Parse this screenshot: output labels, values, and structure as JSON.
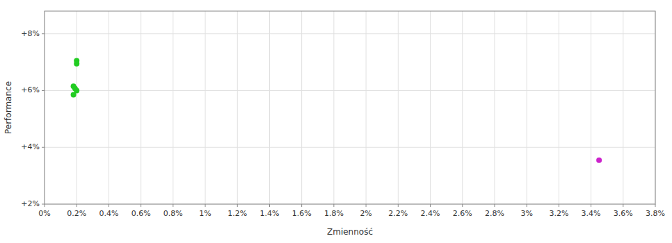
{
  "chart_data": {
    "type": "scatter",
    "x_label": "Zmienność",
    "y_label": "Performance",
    "xlim": [
      0.0,
      0.038
    ],
    "ylim": [
      0.02,
      0.088
    ],
    "xticks": [
      {
        "value": 0.0,
        "label": "0%"
      },
      {
        "value": 0.002,
        "label": "0.2%"
      },
      {
        "value": 0.004,
        "label": "0.4%"
      },
      {
        "value": 0.006,
        "label": "0.6%"
      },
      {
        "value": 0.008,
        "label": "0.8%"
      },
      {
        "value": 0.01,
        "label": "1%"
      },
      {
        "value": 0.012,
        "label": "1.2%"
      },
      {
        "value": 0.014,
        "label": "1.4%"
      },
      {
        "value": 0.016,
        "label": "1.6%"
      },
      {
        "value": 0.018,
        "label": "1.8%"
      },
      {
        "value": 0.02,
        "label": "2%"
      },
      {
        "value": 0.022,
        "label": "2.2%"
      },
      {
        "value": 0.024,
        "label": "2.4%"
      },
      {
        "value": 0.026,
        "label": "2.6%"
      },
      {
        "value": 0.028,
        "label": "2.8%"
      },
      {
        "value": 0.03,
        "label": "3%"
      },
      {
        "value": 0.032,
        "label": "3.2%"
      },
      {
        "value": 0.034,
        "label": "3.4%"
      },
      {
        "value": 0.036,
        "label": "3.6%"
      },
      {
        "value": 0.038,
        "label": "3.8%"
      }
    ],
    "yticks": [
      {
        "value": 0.02,
        "label": "+2%"
      },
      {
        "value": 0.04,
        "label": "+4%"
      },
      {
        "value": 0.06,
        "label": "+6%"
      },
      {
        "value": 0.08,
        "label": "+8%"
      }
    ],
    "grid": true,
    "series": [
      {
        "color": "#22cc22",
        "x": [
          0.002,
          0.002,
          0.0018,
          0.0019,
          0.002,
          0.0018
        ],
        "values": [
          0.0705,
          0.0695,
          0.0615,
          0.0607,
          0.06,
          0.0585
        ]
      },
      {
        "color": "#cc22cc",
        "x": [
          0.0345
        ],
        "values": [
          0.0355
        ]
      }
    ]
  }
}
